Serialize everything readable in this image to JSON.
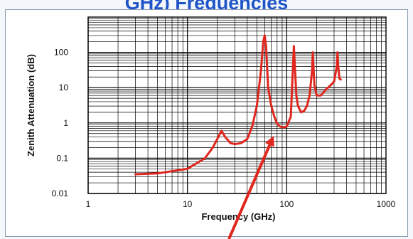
{
  "slide": {
    "title": "GHz) Frequencies"
  },
  "colors": {
    "curve": "#e0261d",
    "grid": "#000000",
    "title": "#1f55c8"
  },
  "chart_data": {
    "type": "line",
    "title": "",
    "xlabel": "Frequency (GHz)",
    "ylabel": "Zenith Attenuation (dB)",
    "xscale": "log",
    "yscale": "log",
    "xlim": [
      1,
      1000
    ],
    "ylim": [
      0.01,
      1000
    ],
    "x_ticks": [
      1,
      10,
      100,
      1000
    ],
    "x_tick_labels": [
      "1",
      "10",
      "100",
      "1000"
    ],
    "y_ticks": [
      0.01,
      0.1,
      1,
      10,
      100
    ],
    "y_tick_labels": [
      "0.01",
      "0.1",
      "1",
      "10",
      "100"
    ],
    "grid": true,
    "series": [
      {
        "x": [
          3,
          5,
          10,
          15,
          18,
          20,
          22,
          24,
          27,
          30,
          35,
          40,
          45,
          50,
          55,
          58,
          60,
          62,
          65,
          70,
          75,
          80,
          85,
          90,
          95,
          100,
          110,
          118,
          125,
          130,
          140,
          150,
          160,
          170,
          180,
          183,
          186,
          190,
          200,
          220,
          250,
          280,
          300,
          320,
          325,
          330,
          340,
          350
        ],
        "y": [
          0.035,
          0.037,
          0.05,
          0.1,
          0.2,
          0.35,
          0.6,
          0.4,
          0.27,
          0.25,
          0.27,
          0.35,
          0.8,
          3,
          30,
          200,
          300,
          150,
          10,
          3,
          1.5,
          0.95,
          0.8,
          0.75,
          0.75,
          0.8,
          1.5,
          150,
          6,
          3,
          2,
          2.2,
          3,
          6,
          30,
          100,
          40,
          12,
          6,
          6,
          9,
          12,
          15,
          40,
          100,
          40,
          18,
          17
        ]
      }
    ],
    "annotations": [
      {
        "type": "arrow",
        "points_to": [
          90,
          0.75
        ]
      }
    ]
  }
}
